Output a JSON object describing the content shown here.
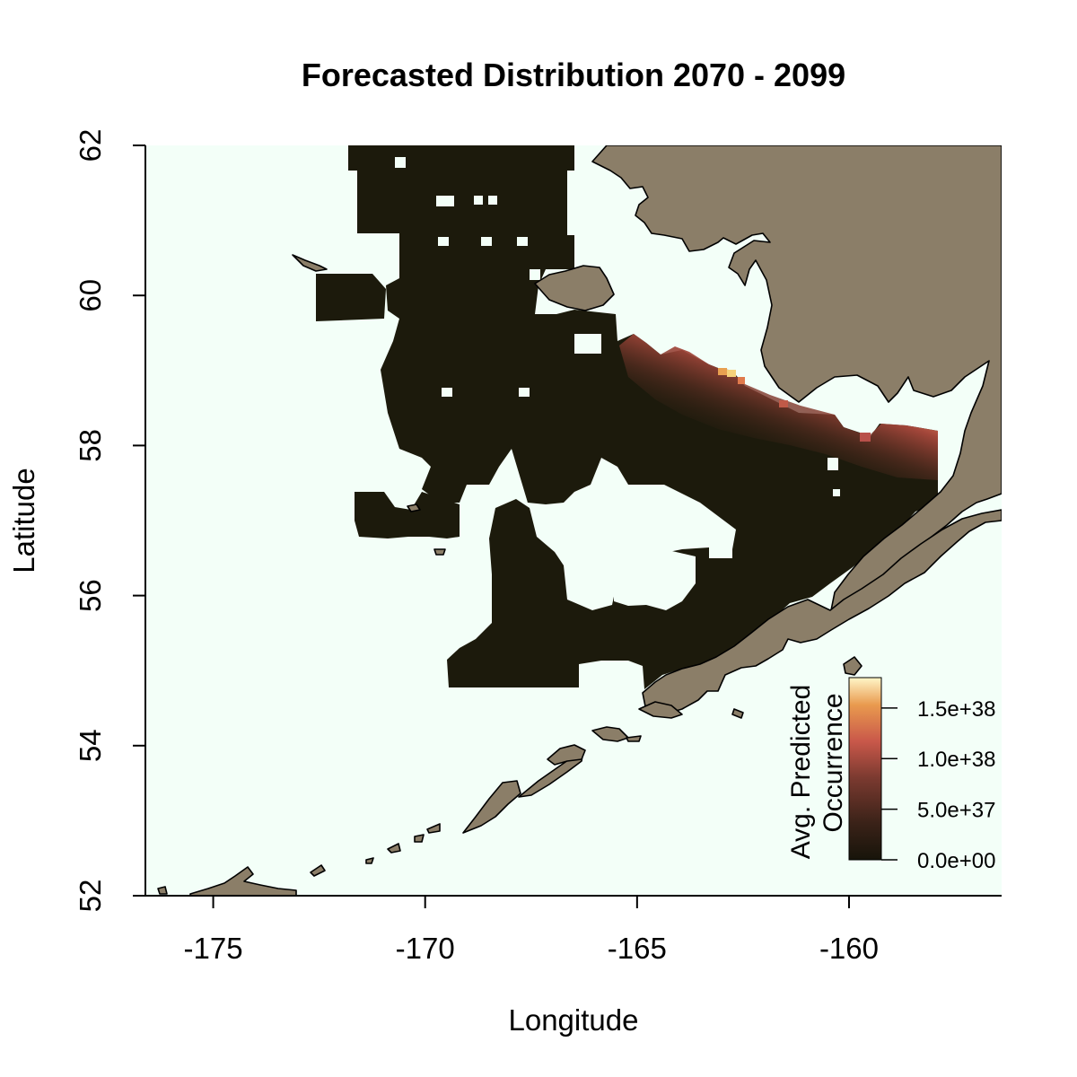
{
  "title": "Forecasted Distribution 2070 - 2099",
  "x_axis": {
    "label": "Longitude",
    "range": [
      -176.6,
      -156.4
    ],
    "ticks": [
      -175,
      -170,
      -165,
      -160
    ],
    "tick_labels": [
      "-175",
      "-170",
      "-165",
      "-160"
    ]
  },
  "y_axis": {
    "label": "Latitude",
    "range": [
      52,
      62
    ],
    "ticks": [
      52,
      54,
      56,
      58,
      60,
      62
    ],
    "tick_labels": [
      "52",
      "54",
      "56",
      "58",
      "60",
      "62"
    ]
  },
  "legend": {
    "title_line1": "Avg. Predicted",
    "title_line2": "Occurrence",
    "range": [
      0,
      1.8e+38
    ],
    "ticks": [
      0,
      5e+37,
      1e+38,
      1.5e+38
    ],
    "tick_labels": [
      "0.0e+00",
      "5.0e+37",
      "1.0e+38",
      "1.5e+38"
    ],
    "colors": [
      "#17140a",
      "#3a2218",
      "#7b3a30",
      "#c9584a",
      "#e99a4e",
      "#fff6c8"
    ]
  },
  "colors": {
    "ocean": "#f3fff8",
    "land": "#8b7e68",
    "low_occurrence": "#1c1a0c"
  }
}
